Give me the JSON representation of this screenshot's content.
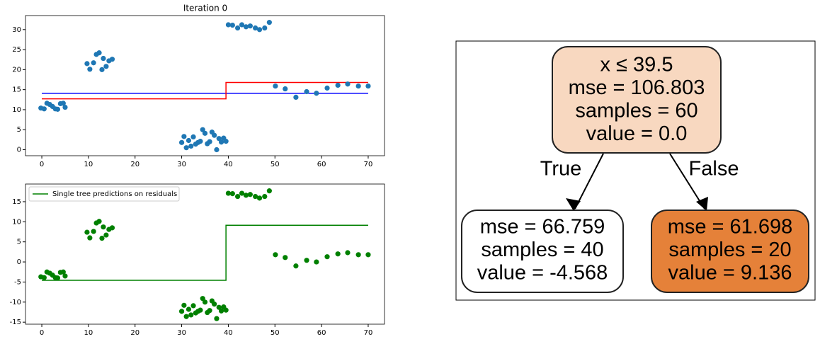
{
  "chart_data": [
    {
      "type": "scatter",
      "title": "Iteration 0",
      "x": [
        -0.2,
        0.5,
        1.1,
        1.7,
        2.3,
        2.9,
        3.4,
        4.0,
        4.6,
        5.0,
        9.7,
        10.3,
        11.1,
        11.7,
        12.3,
        12.9,
        13.2,
        13.8,
        14.4,
        15.1,
        30,
        30.5,
        31,
        31.5,
        32,
        32.5,
        33,
        33.5,
        34,
        34.5,
        35,
        35.5,
        36,
        36.5,
        37,
        37.5,
        38,
        38.5,
        39,
        39.5,
        40.0,
        40.9,
        42.0,
        42.9,
        43.8,
        44.7,
        45.8,
        46.7,
        47.8,
        48.8,
        50.1,
        52.2,
        54.5,
        56.8,
        58.9,
        61.2,
        63.5,
        65.6,
        67.9,
        70.0
      ],
      "values": [
        10.4,
        10.2,
        11.6,
        11.3,
        10.8,
        10.2,
        10.1,
        11.5,
        11.6,
        10.6,
        21.5,
        20.1,
        21.7,
        23.8,
        24.2,
        20.0,
        22.8,
        20.8,
        22.2,
        22.6,
        1.8,
        3.3,
        0.5,
        2.3,
        0.9,
        3.2,
        1.4,
        1.8,
        2.1,
        5.0,
        4.1,
        1.5,
        2.0,
        4.4,
        3.6,
        0,
        2.8,
        1.9,
        2.9,
        2.1,
        31.2,
        31.1,
        30.4,
        31.2,
        30.7,
        30.9,
        30.4,
        30.0,
        30.4,
        31.8,
        15.9,
        15.2,
        13.1,
        14.5,
        14.1,
        15.4,
        16.1,
        16.4,
        15.9,
        15.9
      ],
      "color": "#1f77b4",
      "lines": [
        {
          "color": "#0000ff",
          "x": [
            0,
            70
          ],
          "values": [
            14.1,
            14.1
          ]
        },
        {
          "color": "#ff0000",
          "x": [
            0,
            39.5,
            39.5,
            70
          ],
          "values": [
            12.7,
            12.7,
            16.8,
            16.8
          ]
        }
      ],
      "xlim": [
        -3.5,
        73.5
      ],
      "ylim": [
        -1.5,
        33.5
      ],
      "xticks": [
        0,
        10,
        20,
        30,
        40,
        50,
        60,
        70
      ],
      "yticks": [
        0,
        5,
        10,
        15,
        20,
        25,
        30
      ]
    },
    {
      "type": "scatter",
      "x": [
        -0.2,
        0.5,
        1.1,
        1.7,
        2.3,
        2.9,
        3.4,
        4.0,
        4.6,
        5.0,
        9.7,
        10.3,
        11.1,
        11.7,
        12.3,
        12.9,
        13.2,
        13.8,
        14.4,
        15.1,
        30,
        30.5,
        31,
        31.5,
        32,
        32.5,
        33,
        33.5,
        34,
        34.5,
        35,
        35.5,
        36,
        36.5,
        37,
        37.5,
        38,
        38.5,
        39,
        39.5,
        40.0,
        40.9,
        42.0,
        42.9,
        43.8,
        44.7,
        45.8,
        46.7,
        47.8,
        48.8,
        50.1,
        52.2,
        54.5,
        56.8,
        58.9,
        61.2,
        63.5,
        65.6,
        67.9,
        70.0
      ],
      "values": [
        -3.7,
        -3.9,
        -2.5,
        -2.8,
        -3.3,
        -3.9,
        -4.0,
        -2.6,
        -2.5,
        -3.5,
        7.4,
        6.0,
        7.6,
        9.7,
        10.1,
        5.9,
        8.7,
        6.7,
        8.1,
        8.5,
        -12.3,
        -10.8,
        -13.6,
        -11.8,
        -13.2,
        -10.9,
        -12.7,
        -12.3,
        -12.0,
        -9.1,
        -10.0,
        -12.6,
        -12.1,
        -9.7,
        -10.5,
        -14.1,
        -11.3,
        -12.2,
        -11.2,
        -12.0,
        17.1,
        17.0,
        16.3,
        17.1,
        16.6,
        16.8,
        16.3,
        15.9,
        16.3,
        17.7,
        1.8,
        1.1,
        -1.0,
        0.4,
        0.0,
        1.3,
        2.0,
        2.3,
        1.8,
        1.8
      ],
      "color": "#008000",
      "lines": [
        {
          "name": "Single tree predictions on residuals",
          "color": "#008000",
          "x": [
            0,
            39.5,
            39.5,
            70
          ],
          "values": [
            -4.568,
            -4.568,
            9.136,
            9.136
          ]
        }
      ],
      "legend": "upper left",
      "xlim": [
        -3.5,
        73.5
      ],
      "ylim": [
        -15.5,
        19.4
      ],
      "xticks": [
        0,
        10,
        20,
        30,
        40,
        50,
        60,
        70
      ],
      "yticks": [
        -15,
        -10,
        -5,
        0,
        5,
        10,
        15
      ]
    }
  ],
  "diagram": {
    "nodes": [
      {
        "lines": [
          "x ≤ 39.5",
          "mse = 106.803",
          "samples = 60",
          "value = 0.0"
        ],
        "color": "#f8d8c0"
      },
      {
        "lines": [
          "mse = 66.759",
          "samples = 40",
          "value = -4.568"
        ],
        "color": "#ffffff"
      },
      {
        "lines": [
          "mse = 61.698",
          "samples = 20",
          "value = 9.136"
        ],
        "color": "#e58139"
      }
    ],
    "edges": [
      {
        "label": "True"
      },
      {
        "label": "False"
      }
    ]
  }
}
